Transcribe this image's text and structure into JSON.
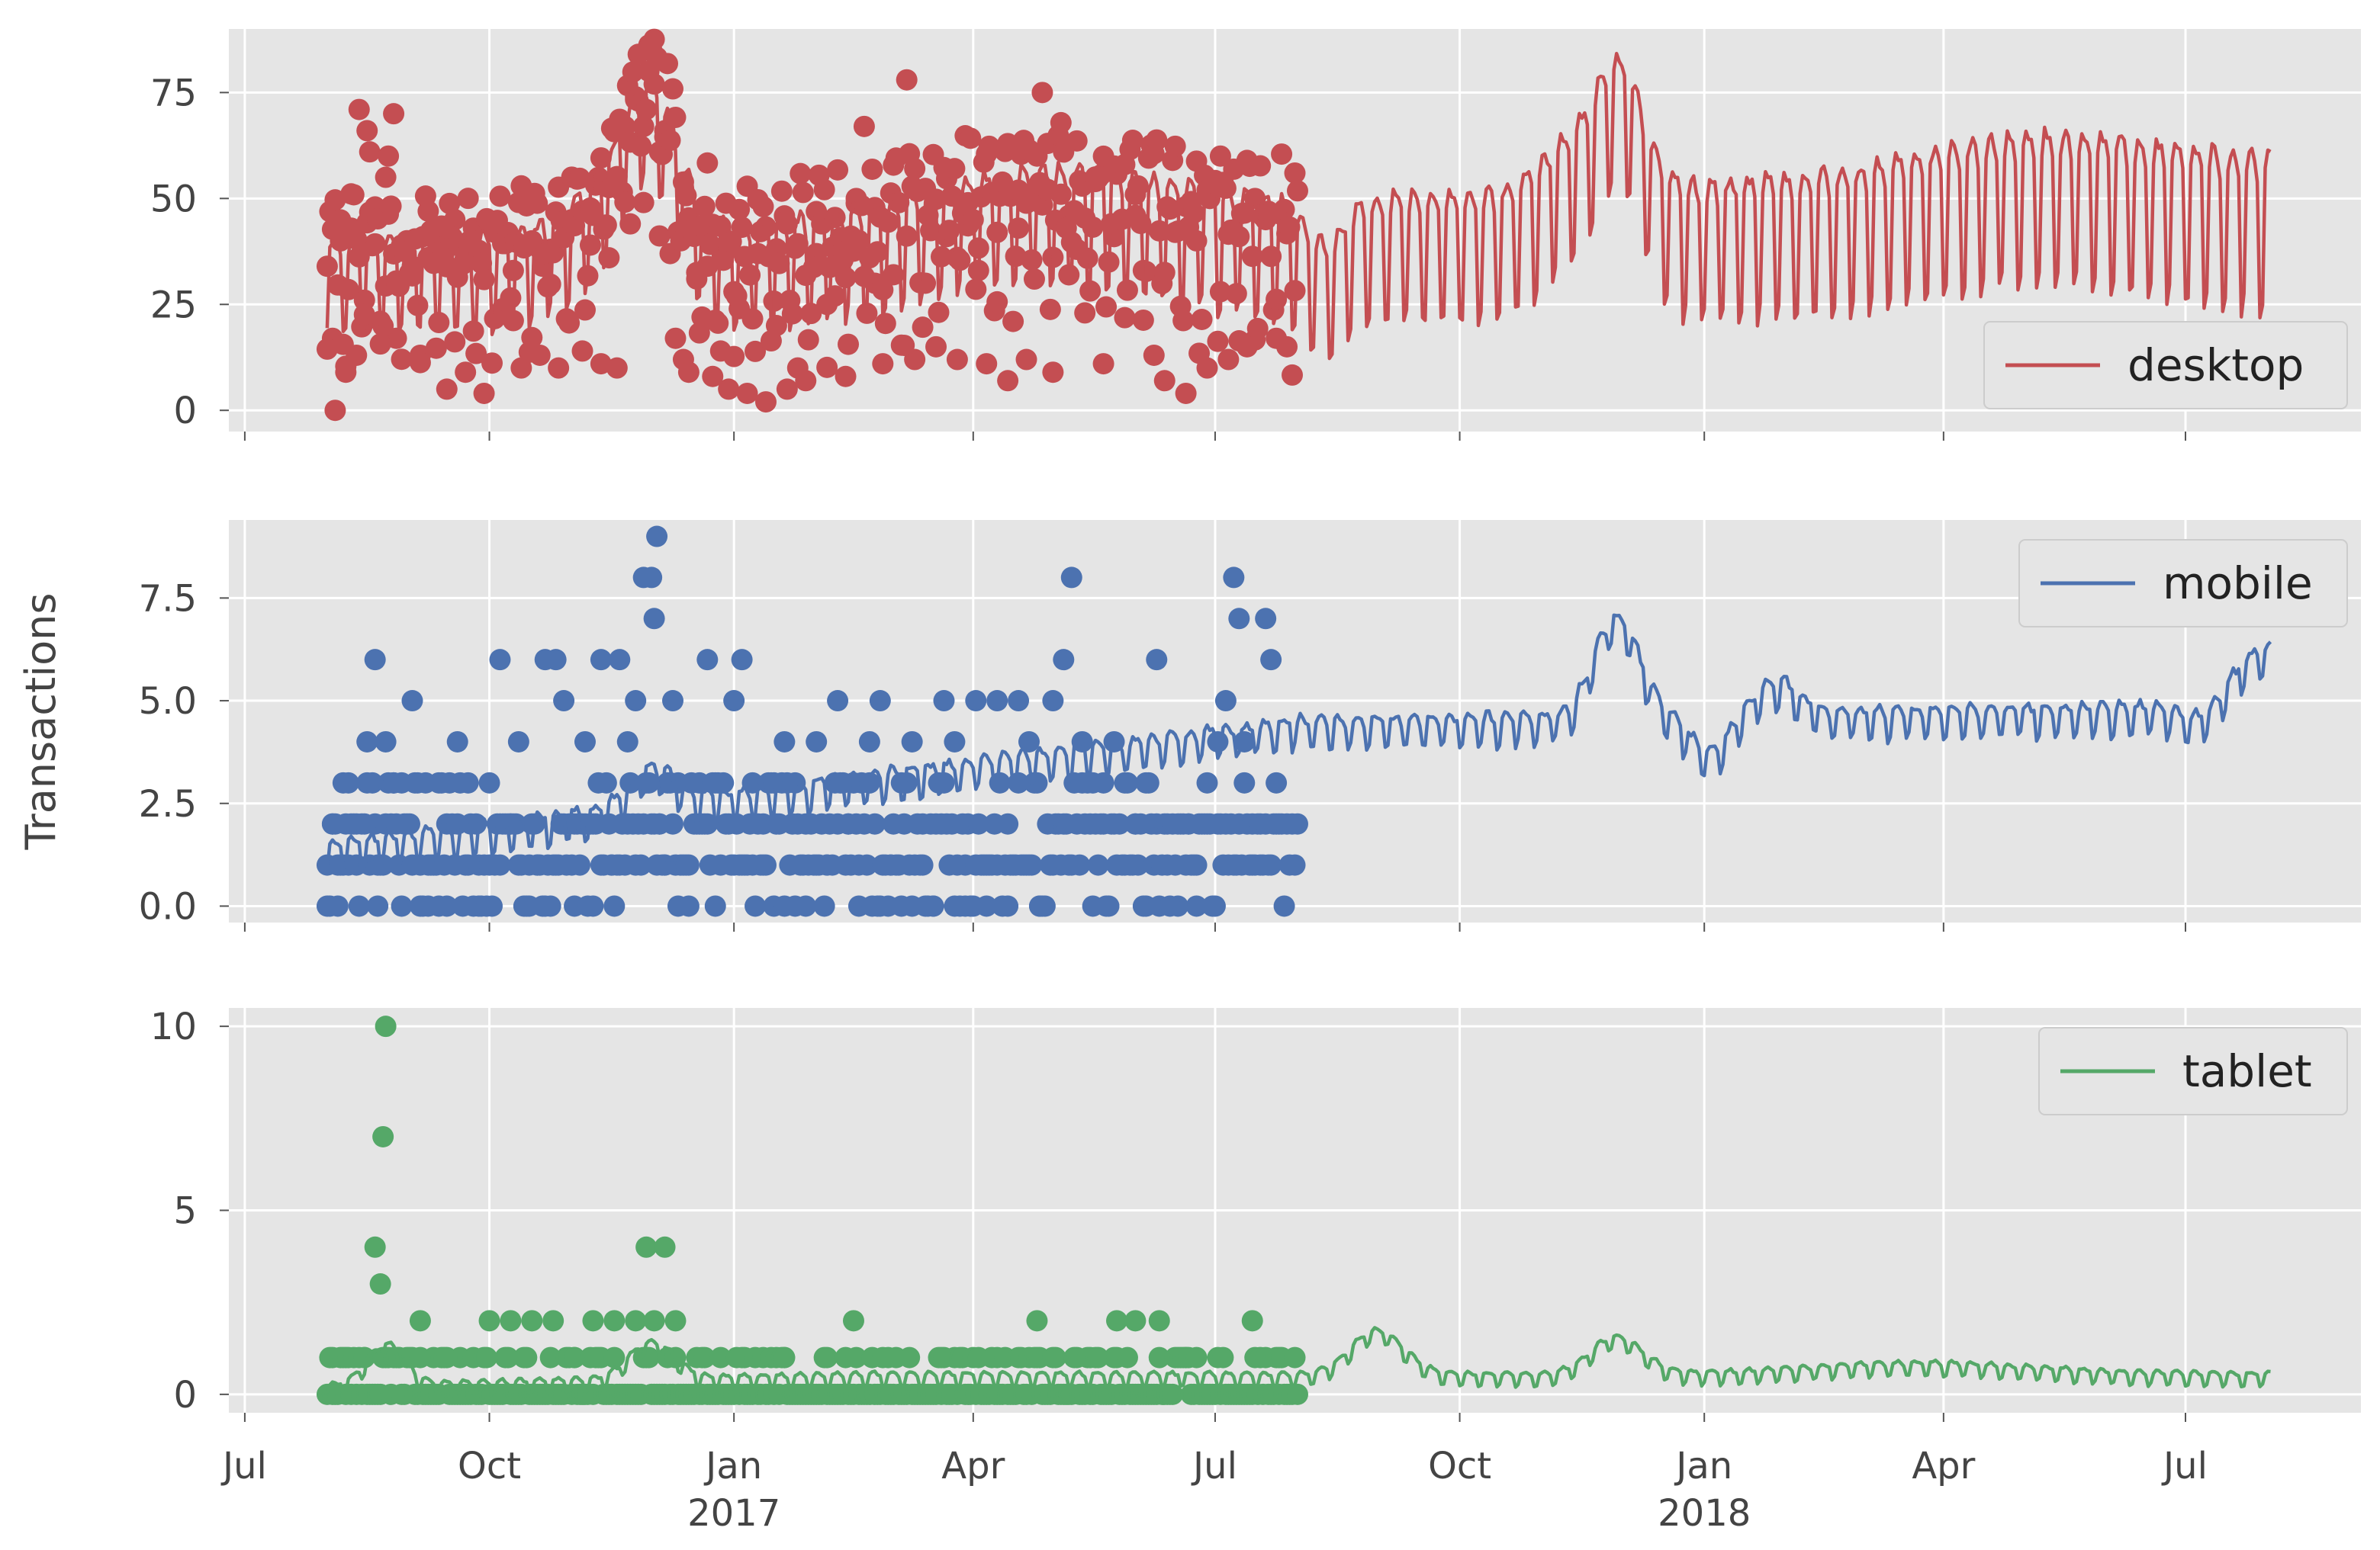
{
  "figure": {
    "ylabel": "Transactions",
    "x_ticks": [
      {
        "date": "2016-07-01",
        "label": "Jul",
        "year": ""
      },
      {
        "date": "2016-10-01",
        "label": "Oct",
        "year": ""
      },
      {
        "date": "2017-01-01",
        "label": "Jan",
        "year": "2017"
      },
      {
        "date": "2017-04-01",
        "label": "Apr",
        "year": ""
      },
      {
        "date": "2017-07-01",
        "label": "Jul",
        "year": ""
      },
      {
        "date": "2017-10-01",
        "label": "Oct",
        "year": ""
      },
      {
        "date": "2018-01-01",
        "label": "Jan",
        "year": "2018"
      },
      {
        "date": "2018-04-01",
        "label": "Apr",
        "year": ""
      },
      {
        "date": "2018-07-01",
        "label": "Jul",
        "year": ""
      }
    ]
  },
  "chart_data": [
    {
      "type": "line",
      "legend": "desktop",
      "legend_position": "lower right",
      "color": "#c44e52",
      "background": "#e5e5e5",
      "grid": true,
      "xlim": [
        "2016-06-25",
        "2018-09-05"
      ],
      "ylim": [
        -5,
        90
      ],
      "yticks": [
        0,
        25,
        50,
        75
      ],
      "ytick_labels": [
        "0",
        "25",
        "50",
        "75"
      ],
      "observed_range": [
        "2016-08-01",
        "2017-08-01"
      ],
      "forecast_range": [
        "2016-08-01",
        "2018-08-02"
      ],
      "observed_points": [
        [
          "2016-08-01",
          34
        ],
        [
          "2016-08-03",
          17
        ],
        [
          "2016-08-04",
          0
        ],
        [
          "2016-08-06",
          40
        ],
        [
          "2016-08-08",
          9
        ],
        [
          "2016-08-10",
          43
        ],
        [
          "2016-08-12",
          13
        ],
        [
          "2016-08-13",
          71
        ],
        [
          "2016-08-15",
          26
        ],
        [
          "2016-08-16",
          66
        ],
        [
          "2016-08-17",
          61
        ],
        [
          "2016-08-19",
          48
        ],
        [
          "2016-08-21",
          21
        ],
        [
          "2016-08-23",
          55
        ],
        [
          "2016-08-24",
          60
        ],
        [
          "2016-08-26",
          70
        ],
        [
          "2016-08-27",
          17
        ],
        [
          "2016-08-29",
          39
        ],
        [
          "2016-09-02",
          34
        ],
        [
          "2016-09-05",
          13
        ],
        [
          "2016-09-08",
          47
        ],
        [
          "2016-09-11",
          40
        ],
        [
          "2016-09-15",
          5
        ],
        [
          "2016-09-18",
          45
        ],
        [
          "2016-09-22",
          9
        ],
        [
          "2016-09-25",
          43
        ],
        [
          "2016-09-29",
          4
        ],
        [
          "2016-10-03",
          42
        ],
        [
          "2016-10-06",
          24
        ],
        [
          "2016-10-10",
          33
        ],
        [
          "2016-10-13",
          10
        ],
        [
          "2016-10-17",
          40
        ],
        [
          "2016-10-20",
          13
        ],
        [
          "2016-10-24",
          38
        ],
        [
          "2016-10-27",
          10
        ],
        [
          "2016-11-01",
          45
        ],
        [
          "2016-11-05",
          14
        ],
        [
          "2016-11-08",
          39
        ],
        [
          "2016-11-12",
          11
        ],
        [
          "2016-11-15",
          36
        ],
        [
          "2016-11-18",
          10
        ],
        [
          "2016-11-21",
          67
        ],
        [
          "2016-11-23",
          44
        ],
        [
          "2016-11-25",
          74
        ],
        [
          "2016-11-26",
          73
        ],
        [
          "2016-11-28",
          67
        ],
        [
          "2016-11-30",
          80
        ],
        [
          "2016-12-02",
          77
        ],
        [
          "2016-12-04",
          61
        ],
        [
          "2016-12-06",
          66
        ],
        [
          "2016-12-08",
          37
        ],
        [
          "2016-12-10",
          17
        ],
        [
          "2016-12-13",
          12
        ],
        [
          "2016-12-15",
          9
        ],
        [
          "2016-12-18",
          31
        ],
        [
          "2016-12-20",
          22
        ],
        [
          "2016-12-22",
          34
        ],
        [
          "2016-12-24",
          8
        ],
        [
          "2016-12-27",
          14
        ],
        [
          "2016-12-30",
          5
        ],
        [
          "2017-01-01",
          28
        ],
        [
          "2017-01-03",
          24
        ],
        [
          "2017-01-06",
          4
        ],
        [
          "2017-01-10",
          37
        ],
        [
          "2017-01-13",
          2
        ],
        [
          "2017-01-17",
          20
        ],
        [
          "2017-01-21",
          5
        ],
        [
          "2017-01-25",
          10
        ],
        [
          "2017-01-28",
          7
        ],
        [
          "2017-02-01",
          37
        ],
        [
          "2017-02-05",
          25
        ],
        [
          "2017-02-08",
          27
        ],
        [
          "2017-02-12",
          8
        ],
        [
          "2017-02-16",
          50
        ],
        [
          "2017-02-19",
          67
        ],
        [
          "2017-02-23",
          30
        ],
        [
          "2017-02-26",
          11
        ],
        [
          "2017-03-02",
          32
        ],
        [
          "2017-03-07",
          78
        ],
        [
          "2017-03-10",
          12
        ],
        [
          "2017-03-14",
          30
        ],
        [
          "2017-03-18",
          15
        ],
        [
          "2017-03-22",
          41
        ],
        [
          "2017-03-26",
          12
        ],
        [
          "2017-03-30",
          49
        ],
        [
          "2017-04-03",
          33
        ],
        [
          "2017-04-06",
          11
        ],
        [
          "2017-04-10",
          42
        ],
        [
          "2017-04-14",
          7
        ],
        [
          "2017-04-18",
          43
        ],
        [
          "2017-04-21",
          12
        ],
        [
          "2017-04-25",
          60
        ],
        [
          "2017-04-27",
          75
        ],
        [
          "2017-04-29",
          63
        ],
        [
          "2017-05-01",
          9
        ],
        [
          "2017-05-04",
          51
        ],
        [
          "2017-05-07",
          46
        ],
        [
          "2017-05-10",
          38
        ],
        [
          "2017-05-13",
          23
        ],
        [
          "2017-05-17",
          54
        ],
        [
          "2017-05-20",
          11
        ],
        [
          "2017-05-24",
          41
        ],
        [
          "2017-05-28",
          58
        ],
        [
          "2017-06-01",
          46
        ],
        [
          "2017-06-04",
          33
        ],
        [
          "2017-06-08",
          13
        ],
        [
          "2017-06-12",
          7
        ],
        [
          "2017-06-16",
          42
        ],
        [
          "2017-06-20",
          4
        ],
        [
          "2017-06-24",
          40
        ],
        [
          "2017-06-28",
          10
        ],
        [
          "2017-07-03",
          60
        ],
        [
          "2017-07-06",
          12
        ],
        [
          "2017-07-10",
          41
        ],
        [
          "2017-07-13",
          15
        ],
        [
          "2017-07-16",
          50
        ],
        [
          "2017-07-20",
          45
        ],
        [
          "2017-07-24",
          17
        ],
        [
          "2017-07-28",
          15
        ],
        [
          "2017-07-31",
          56
        ]
      ]
    },
    {
      "type": "line",
      "legend": "mobile",
      "legend_position": "upper right",
      "color": "#4c72b0",
      "background": "#e5e5e5",
      "grid": true,
      "xlim": [
        "2016-06-25",
        "2018-09-05"
      ],
      "ylim": [
        -0.4,
        9.4
      ],
      "yticks": [
        0,
        2.5,
        5,
        7.5
      ],
      "ytick_labels": [
        "0.0",
        "2.5",
        "5.0",
        "7.5"
      ],
      "observed_range": [
        "2016-08-01",
        "2017-08-01"
      ],
      "forecast_range": [
        "2016-08-01",
        "2018-08-02"
      ],
      "observed_points": [
        [
          "2016-08-01",
          0
        ],
        [
          "2016-08-03",
          2
        ],
        [
          "2016-08-05",
          0
        ],
        [
          "2016-08-07",
          1
        ],
        [
          "2016-08-09",
          3
        ],
        [
          "2016-08-12",
          1
        ],
        [
          "2016-08-16",
          4
        ],
        [
          "2016-08-19",
          6
        ],
        [
          "2016-08-20",
          0
        ],
        [
          "2016-08-23",
          4
        ],
        [
          "2016-08-26",
          3
        ],
        [
          "2016-08-29",
          0
        ],
        [
          "2016-09-02",
          5
        ],
        [
          "2016-09-05",
          0
        ],
        [
          "2016-09-08",
          1
        ],
        [
          "2016-09-12",
          3
        ],
        [
          "2016-09-15",
          2
        ],
        [
          "2016-09-19",
          4
        ],
        [
          "2016-09-23",
          1
        ],
        [
          "2016-09-27",
          0
        ],
        [
          "2016-10-01",
          3
        ],
        [
          "2016-10-05",
          6
        ],
        [
          "2016-10-09",
          2
        ],
        [
          "2016-10-12",
          4
        ],
        [
          "2016-10-16",
          0
        ],
        [
          "2016-10-19",
          1
        ],
        [
          "2016-10-22",
          6
        ],
        [
          "2016-10-26",
          6
        ],
        [
          "2016-10-29",
          5
        ],
        [
          "2016-11-02",
          0
        ],
        [
          "2016-11-06",
          4
        ],
        [
          "2016-11-09",
          2
        ],
        [
          "2016-11-12",
          6
        ],
        [
          "2016-11-16",
          1
        ],
        [
          "2016-11-19",
          6
        ],
        [
          "2016-11-22",
          4
        ],
        [
          "2016-11-25",
          5
        ],
        [
          "2016-11-28",
          8
        ],
        [
          "2016-12-01",
          8
        ],
        [
          "2016-12-02",
          7
        ],
        [
          "2016-12-03",
          9
        ],
        [
          "2016-12-04",
          2
        ],
        [
          "2016-12-06",
          1
        ],
        [
          "2016-12-09",
          5
        ],
        [
          "2016-12-11",
          0
        ],
        [
          "2016-12-15",
          0
        ],
        [
          "2016-12-19",
          3
        ],
        [
          "2016-12-22",
          6
        ],
        [
          "2016-12-25",
          0
        ],
        [
          "2017-01-01",
          5
        ],
        [
          "2017-01-04",
          6
        ],
        [
          "2017-01-08",
          3
        ],
        [
          "2017-01-12",
          2
        ],
        [
          "2017-01-16",
          0
        ],
        [
          "2017-01-20",
          4
        ],
        [
          "2017-01-24",
          3
        ],
        [
          "2017-01-28",
          0
        ],
        [
          "2017-02-01",
          4
        ],
        [
          "2017-02-05",
          1
        ],
        [
          "2017-02-09",
          5
        ],
        [
          "2017-02-13",
          2
        ],
        [
          "2017-02-17",
          0
        ],
        [
          "2017-02-21",
          4
        ],
        [
          "2017-02-25",
          5
        ],
        [
          "2017-03-01",
          1
        ],
        [
          "2017-03-05",
          0
        ],
        [
          "2017-03-09",
          4
        ],
        [
          "2017-03-13",
          1
        ],
        [
          "2017-03-17",
          0
        ],
        [
          "2017-03-21",
          5
        ],
        [
          "2017-03-25",
          4
        ],
        [
          "2017-03-29",
          0
        ],
        [
          "2017-04-02",
          5
        ],
        [
          "2017-04-06",
          1
        ],
        [
          "2017-04-10",
          5
        ],
        [
          "2017-04-14",
          0
        ],
        [
          "2017-04-18",
          5
        ],
        [
          "2017-04-22",
          4
        ],
        [
          "2017-04-26",
          0
        ],
        [
          "2017-05-01",
          5
        ],
        [
          "2017-05-05",
          6
        ],
        [
          "2017-05-08",
          8
        ],
        [
          "2017-05-12",
          4
        ],
        [
          "2017-05-16",
          0
        ],
        [
          "2017-05-20",
          3
        ],
        [
          "2017-05-24",
          4
        ],
        [
          "2017-05-28",
          1
        ],
        [
          "2017-06-01",
          2
        ],
        [
          "2017-06-05",
          0
        ],
        [
          "2017-06-09",
          6
        ],
        [
          "2017-06-13",
          1
        ],
        [
          "2017-06-17",
          0
        ],
        [
          "2017-06-21",
          2
        ],
        [
          "2017-06-24",
          0
        ],
        [
          "2017-06-28",
          3
        ],
        [
          "2017-07-02",
          4
        ],
        [
          "2017-07-05",
          5
        ],
        [
          "2017-07-08",
          8
        ],
        [
          "2017-07-10",
          7
        ],
        [
          "2017-07-12",
          4
        ],
        [
          "2017-07-15",
          1
        ],
        [
          "2017-07-18",
          1
        ],
        [
          "2017-07-20",
          7
        ],
        [
          "2017-07-22",
          6
        ],
        [
          "2017-07-24",
          2
        ]
      ]
    },
    {
      "type": "line",
      "legend": "tablet",
      "legend_position": "upper right",
      "color": "#55a868",
      "background": "#e5e5e5",
      "grid": true,
      "xlim": [
        "2016-06-25",
        "2018-09-05"
      ],
      "ylim": [
        -0.5,
        10.5
      ],
      "yticks": [
        0,
        5,
        10
      ],
      "ytick_labels": [
        "0",
        "5",
        "10"
      ],
      "observed_range": [
        "2016-08-01",
        "2017-08-01"
      ],
      "forecast_range": [
        "2016-08-01",
        "2018-08-02"
      ],
      "observed_points": [
        [
          "2016-08-03",
          1
        ],
        [
          "2016-08-08",
          1
        ],
        [
          "2016-08-15",
          1
        ],
        [
          "2016-08-19",
          4
        ],
        [
          "2016-08-21",
          3
        ],
        [
          "2016-08-22",
          7
        ],
        [
          "2016-08-23",
          10
        ],
        [
          "2016-08-28",
          1
        ],
        [
          "2016-09-05",
          2
        ],
        [
          "2016-09-10",
          1
        ],
        [
          "2016-09-20",
          1
        ],
        [
          "2016-10-01",
          2
        ],
        [
          "2016-10-09",
          2
        ],
        [
          "2016-10-17",
          2
        ],
        [
          "2016-10-25",
          2
        ],
        [
          "2016-11-02",
          1
        ],
        [
          "2016-11-09",
          2
        ],
        [
          "2016-11-17",
          2
        ],
        [
          "2016-11-25",
          2
        ],
        [
          "2016-11-29",
          4
        ],
        [
          "2016-12-02",
          2
        ],
        [
          "2016-12-06",
          4
        ],
        [
          "2016-12-10",
          2
        ],
        [
          "2016-12-20",
          1
        ],
        [
          "2017-01-05",
          1
        ],
        [
          "2017-01-20",
          1
        ],
        [
          "2017-02-05",
          1
        ],
        [
          "2017-02-15",
          2
        ],
        [
          "2017-02-28",
          1
        ],
        [
          "2017-03-20",
          1
        ],
        [
          "2017-04-10",
          1
        ],
        [
          "2017-04-25",
          2
        ],
        [
          "2017-05-15",
          1
        ],
        [
          "2017-05-25",
          2
        ],
        [
          "2017-06-01",
          2
        ],
        [
          "2017-06-10",
          2
        ],
        [
          "2017-06-20",
          1
        ],
        [
          "2017-07-15",
          2
        ],
        [
          "2017-07-25",
          1
        ]
      ]
    }
  ]
}
